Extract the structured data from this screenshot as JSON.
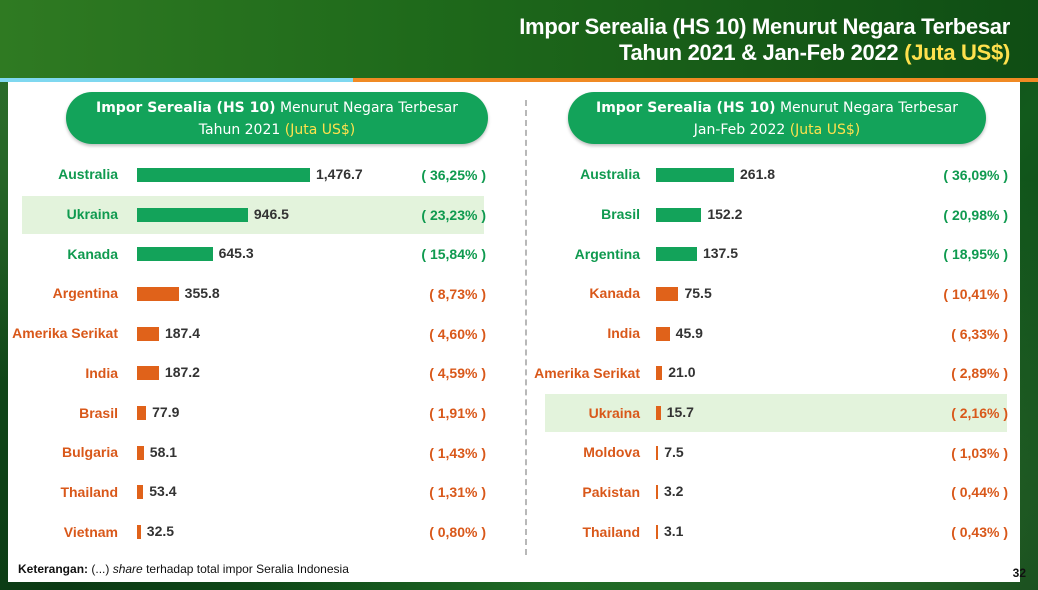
{
  "title": {
    "line1": "Impor Serealia (HS 10) Menurut Negara Terbesar",
    "line2": "Tahun 2021 & Jan-Feb 2022",
    "unit": "(Juta US$)"
  },
  "footnote": {
    "label": "Keterangan:",
    "pre": "(...)",
    "italic": "share",
    "post": "terhadap total impor Seralia Indonesia"
  },
  "page_number": "32",
  "colors": {
    "green": "#13a35a",
    "orange": "#e0621a",
    "green_text": "#0f9a4f",
    "orange_text": "#d9581a"
  },
  "chart_data": [
    {
      "type": "bar",
      "orientation": "horizontal",
      "title_bold": "Impor Serealia (HS 10)",
      "title_rest": "Menurut Negara Terbesar",
      "subtitle": "Tahun 2021",
      "unit": "(Juta US$)",
      "max": 1476.7,
      "categories": [
        "Australia",
        "Ukraina",
        "Kanada",
        "Argentina",
        "Amerika Serikat",
        "India",
        "Brasil",
        "Bulgaria",
        "Thailand",
        "Vietnam"
      ],
      "values": [
        1476.7,
        946.5,
        645.3,
        355.8,
        187.4,
        187.2,
        77.9,
        58.1,
        53.4,
        32.5
      ],
      "value_labels": [
        "1,476.7",
        "946.5",
        "645.3",
        "355.8",
        "187.4",
        "187.2",
        "77.9",
        "58.1",
        "53.4",
        "32.5"
      ],
      "shares": [
        "( 36,25% )",
        "( 23,23% )",
        "( 15,84% )",
        "( 8,73% )",
        "( 4,60% )",
        "( 4,59% )",
        "( 1,91% )",
        "( 1,43% )",
        "( 1,31% )",
        "( 0,80% )"
      ],
      "bar_colors": [
        "green",
        "green",
        "green",
        "orange",
        "orange",
        "orange",
        "orange",
        "orange",
        "orange",
        "orange"
      ],
      "highlight": "Ukraina"
    },
    {
      "type": "bar",
      "orientation": "horizontal",
      "title_bold": "Impor Serealia (HS 10)",
      "title_rest": "Menurut Negara Terbesar",
      "subtitle": "Jan-Feb 2022",
      "unit": "(Juta US$)",
      "max": 261.8,
      "categories": [
        "Australia",
        "Brasil",
        "Argentina",
        "Kanada",
        "India",
        "Amerika Serikat",
        "Ukraina",
        "Moldova",
        "Pakistan",
        "Thailand"
      ],
      "values": [
        261.8,
        152.2,
        137.5,
        75.5,
        45.9,
        21.0,
        15.7,
        7.5,
        3.2,
        3.1
      ],
      "value_labels": [
        "261.8",
        "152.2",
        "137.5",
        "75.5",
        "45.9",
        "21.0",
        "15.7",
        "7.5",
        "3.2",
        "3.1"
      ],
      "shares": [
        "( 36,09% )",
        "( 20,98% )",
        "( 18,95% )",
        "( 10,41% )",
        "( 6,33% )",
        "( 2,89% )",
        "( 2,16% )",
        "( 1,03% )",
        "( 0,44% )",
        "( 0,43% )"
      ],
      "bar_colors": [
        "green",
        "green",
        "green",
        "orange",
        "orange",
        "orange",
        "orange",
        "orange",
        "orange",
        "orange"
      ],
      "highlight": "Ukraina"
    }
  ]
}
